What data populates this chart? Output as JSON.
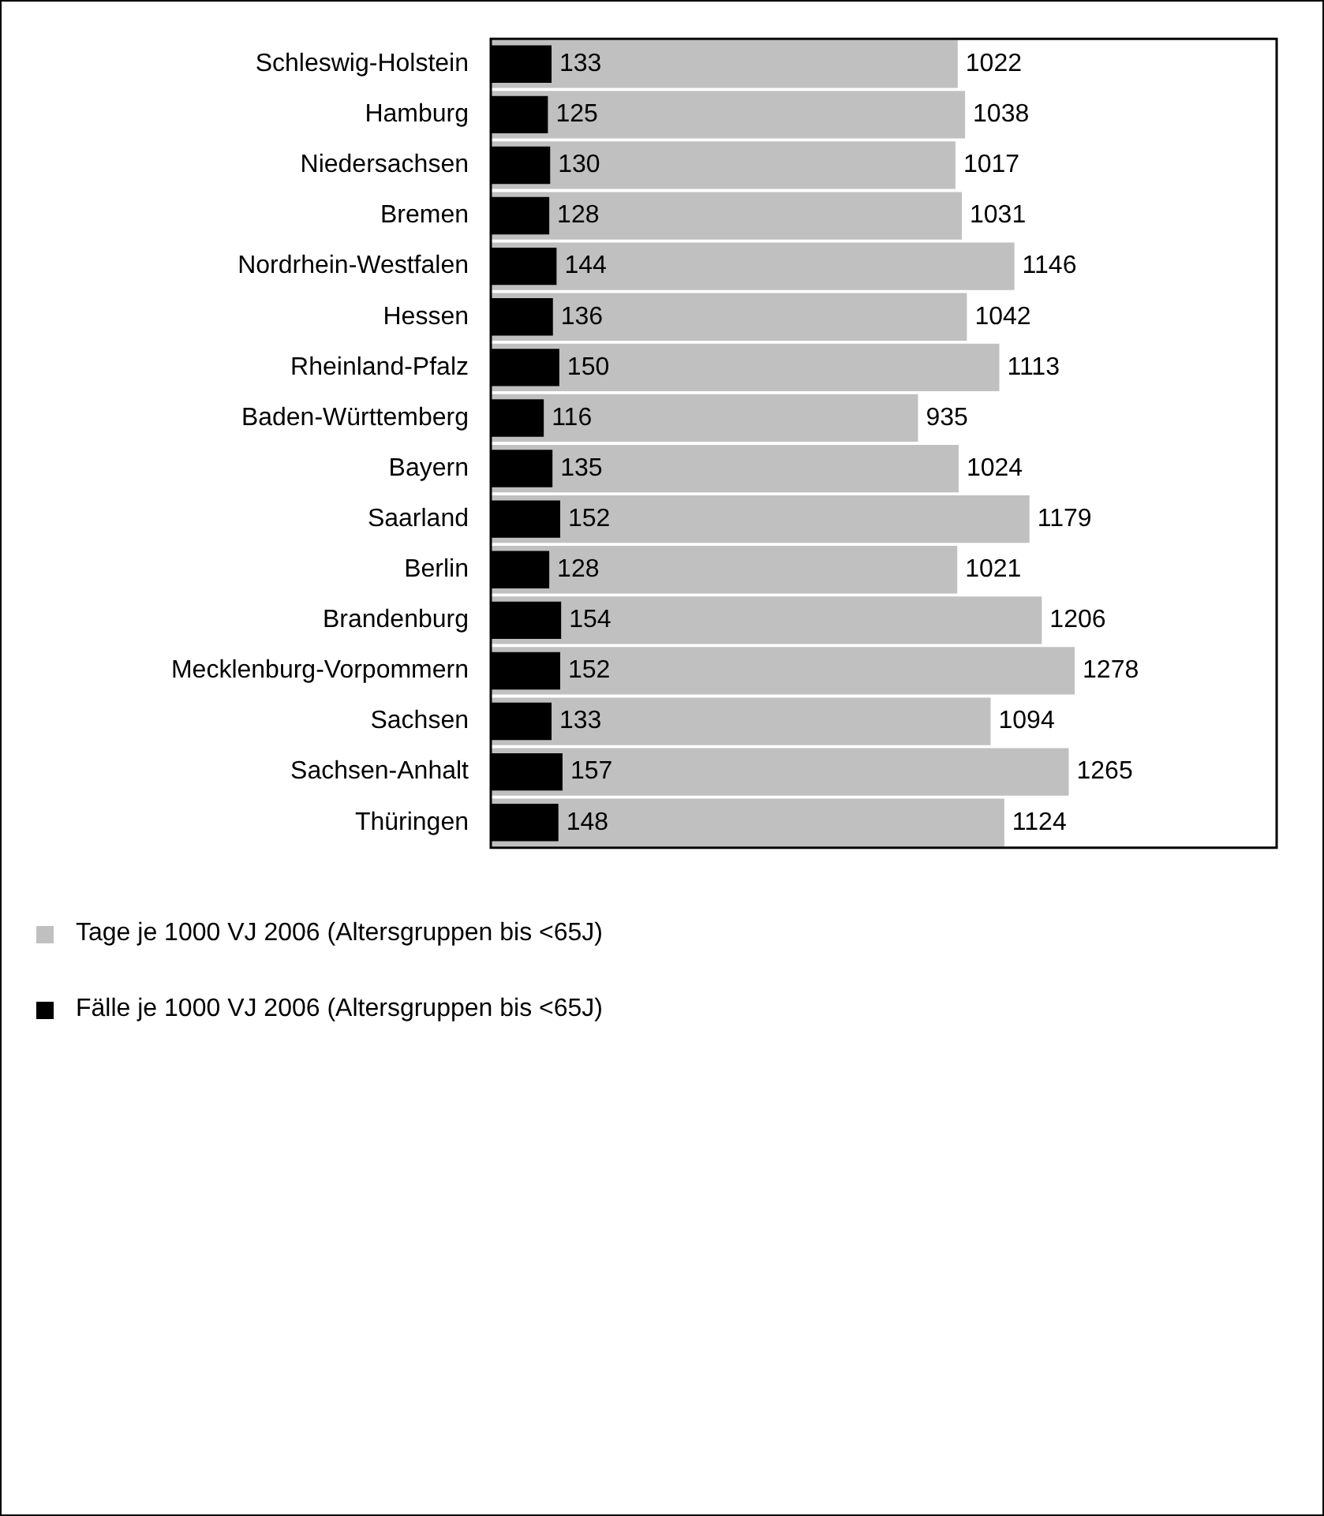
{
  "chart_data": {
    "type": "bar",
    "orientation": "horizontal",
    "categories": [
      "Schleswig-Holstein",
      "Hamburg",
      "Niedersachsen",
      "Bremen",
      "Nordrhein-Westfalen",
      "Hessen",
      "Rheinland-Pfalz",
      "Baden-Württemberg",
      "Bayern",
      "Saarland",
      "Berlin",
      "Brandenburg",
      "Mecklenburg-Vorpommern",
      "Sachsen",
      "Sachsen-Anhalt",
      "Thüringen"
    ],
    "series": [
      {
        "name": "Tage je 1000 VJ 2006 (Altersgruppen bis <65J)",
        "color": "#c0c0c0",
        "values": [
          1022,
          1038,
          1017,
          1031,
          1146,
          1042,
          1113,
          935,
          1024,
          1179,
          1021,
          1206,
          1278,
          1094,
          1265,
          1124
        ]
      },
      {
        "name": "Fälle je 1000 VJ 2006 (Altersgruppen bis <65J)",
        "color": "#000000",
        "values": [
          133,
          125,
          130,
          128,
          144,
          136,
          150,
          116,
          135,
          152,
          128,
          154,
          152,
          133,
          157,
          148
        ]
      }
    ],
    "data_labels": true,
    "legend": "bottom",
    "grid": false,
    "tick_labels": "y",
    "xlim": [
      0,
      1720
    ]
  }
}
